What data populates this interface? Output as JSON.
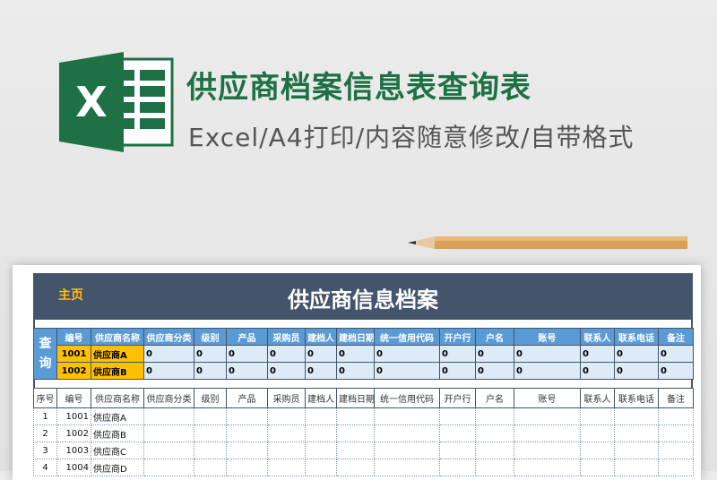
{
  "banner": {
    "title": "供应商档案信息表查询表",
    "subtitle": "Excel/A4打印/内容随意修改/自带格式",
    "logo_letter": "X"
  },
  "sheet": {
    "home": "主页",
    "title": "供应商信息档案",
    "query_label": "查询",
    "columns": [
      "编号",
      "供应商名称",
      "供应商分类",
      "级别",
      "产品",
      "采购员",
      "建档人",
      "建档日期",
      "统一信用代码",
      "开户行",
      "户名",
      "账号",
      "联系人",
      "联系电话",
      "备注"
    ],
    "query_rows": [
      [
        "1001",
        "供应商A",
        "0",
        "0",
        "0",
        "0",
        "0",
        "0",
        "0",
        "0",
        "0",
        "0",
        "0",
        "0",
        "0"
      ],
      [
        "1002",
        "供应商B",
        "0",
        "0",
        "0",
        "0",
        "0",
        "0",
        "0",
        "0",
        "0",
        "0",
        "0",
        "0",
        "0"
      ]
    ],
    "seq_header": "序号",
    "rows": [
      [
        "1",
        "1001",
        "供应商A"
      ],
      [
        "2",
        "1002",
        "供应商B"
      ],
      [
        "3",
        "1003",
        "供应商C"
      ],
      [
        "4",
        "1004",
        "供应商D"
      ]
    ]
  },
  "colors": {
    "excel_green": "#1e7145",
    "header": "#44546a",
    "query_header": "#5b9bd5",
    "highlight": "#ffc000",
    "query_cell": "#ddebf7"
  }
}
